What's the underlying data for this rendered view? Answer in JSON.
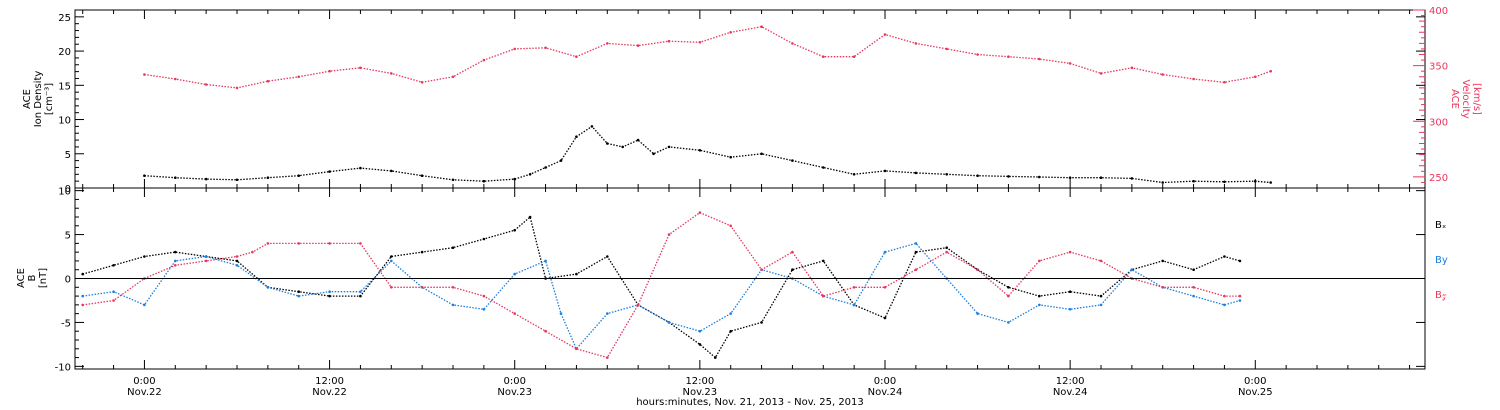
{
  "colors": {
    "black": "#000000",
    "pink": "#e8365d",
    "blue": "#1a7fe0"
  },
  "chart_data": [
    {
      "type": "scatter",
      "panel": "top",
      "ylabel_left": [
        "ACE",
        "Ion Density",
        "[cm⁻³]"
      ],
      "ylabel_right": [
        "ACE",
        "Velocity",
        "[km/s]"
      ],
      "ylim_left": [
        0,
        26
      ],
      "yticks_left": [
        0,
        5,
        10,
        15,
        20,
        25
      ],
      "ylim_right": [
        240,
        400
      ],
      "yticks_right": [
        250,
        300,
        350,
        400
      ],
      "series": [
        {
          "axis": "left",
          "color": "#000000",
          "x": [
            0,
            2,
            4,
            6,
            8,
            10,
            12,
            14,
            16,
            18,
            20,
            22,
            24,
            25,
            26,
            27,
            28,
            29,
            30,
            31,
            32,
            33,
            34,
            36,
            38,
            40,
            42,
            44,
            46,
            48,
            50,
            52,
            54,
            56,
            58,
            60,
            62,
            64,
            66,
            68,
            70,
            72,
            73
          ],
          "y": [
            1.8,
            1.5,
            1.3,
            1.2,
            1.5,
            1.8,
            2.4,
            2.9,
            2.5,
            1.8,
            1.2,
            1.0,
            1.3,
            2.0,
            3.0,
            4.0,
            7.5,
            9.0,
            6.5,
            6.0,
            7.0,
            5.0,
            6.0,
            5.5,
            4.5,
            5.0,
            4.0,
            3.0,
            2.0,
            2.5,
            2.2,
            2.0,
            1.8,
            1.7,
            1.6,
            1.5,
            1.5,
            1.4,
            0.8,
            1.0,
            0.9,
            1.0,
            0.8
          ]
        },
        {
          "axis": "right",
          "color": "#e8365d",
          "x": [
            0,
            2,
            4,
            6,
            8,
            10,
            12,
            14,
            16,
            18,
            20,
            22,
            24,
            26,
            28,
            30,
            32,
            34,
            36,
            38,
            40,
            42,
            44,
            46,
            48,
            50,
            52,
            54,
            56,
            58,
            60,
            62,
            64,
            66,
            68,
            70,
            72,
            73
          ],
          "y": [
            342,
            338,
            333,
            330,
            336,
            340,
            345,
            348,
            343,
            335,
            340,
            355,
            365,
            366,
            358,
            370,
            368,
            372,
            371,
            380,
            385,
            370,
            358,
            358,
            378,
            370,
            365,
            360,
            358,
            356,
            352,
            343,
            348,
            342,
            338,
            335,
            340,
            345
          ]
        }
      ]
    },
    {
      "type": "scatter",
      "panel": "bottom",
      "ylabel": [
        "ACE",
        "B",
        "[nT]"
      ],
      "ylim": [
        -10.3,
        10.3
      ],
      "yticks": [
        -10,
        -5,
        0,
        5,
        10
      ],
      "xlabel": "hours:minutes, Nov. 21, 2013 - Nov. 25, 2013",
      "xlim": [
        -4.5,
        83
      ],
      "xticks": [
        {
          "t": 0,
          "time": "0:00",
          "date": "Nov.22"
        },
        {
          "t": 12,
          "time": "12:00",
          "date": "Nov.22"
        },
        {
          "t": 24,
          "time": "0:00",
          "date": "Nov.23"
        },
        {
          "t": 36,
          "time": "12:00",
          "date": "Nov.23"
        },
        {
          "t": 48,
          "time": "0:00",
          "date": "Nov.24"
        },
        {
          "t": 60,
          "time": "12:00",
          "date": "Nov.24"
        },
        {
          "t": 72,
          "time": "0:00",
          "date": "Nov.25"
        }
      ],
      "series": [
        {
          "name": "Bₓ",
          "color": "#000000",
          "x": [
            -4,
            -2,
            0,
            2,
            4,
            6,
            8,
            10,
            12,
            14,
            16,
            18,
            20,
            22,
            24,
            25,
            26,
            28,
            30,
            32,
            34,
            36,
            37,
            38,
            40,
            42,
            44,
            46,
            48,
            50,
            52,
            54,
            56,
            58,
            60,
            62,
            64,
            66,
            68,
            70,
            71
          ],
          "y": [
            0.5,
            1.5,
            2.5,
            3.0,
            2.5,
            2.0,
            -1.0,
            -1.5,
            -2.0,
            -2.0,
            2.5,
            3.0,
            3.5,
            4.5,
            5.5,
            7.0,
            0.0,
            0.5,
            2.5,
            -3.0,
            -5.0,
            -7.5,
            -9.0,
            -6.0,
            -5.0,
            1.0,
            2.0,
            -3.0,
            -4.5,
            3.0,
            3.5,
            1.0,
            -1.0,
            -2.0,
            -1.5,
            -2.0,
            1.0,
            2.0,
            1.0,
            2.5,
            2.0
          ]
        },
        {
          "name": "By",
          "color": "#1a7fe0",
          "x": [
            -4,
            -2,
            0,
            2,
            4,
            6,
            8,
            10,
            12,
            14,
            16,
            18,
            20,
            22,
            24,
            26,
            27,
            28,
            30,
            32,
            34,
            36,
            38,
            40,
            42,
            44,
            46,
            48,
            50,
            52,
            54,
            56,
            58,
            60,
            62,
            64,
            66,
            68,
            70,
            71
          ],
          "y": [
            -2.0,
            -1.5,
            -3.0,
            2.0,
            2.5,
            1.5,
            -1.0,
            -2.0,
            -1.5,
            -1.5,
            2.0,
            -1.0,
            -3.0,
            -3.5,
            0.5,
            2.0,
            -4.0,
            -8.0,
            -4.0,
            -3.0,
            -5.0,
            -6.0,
            -4.0,
            1.0,
            0.0,
            -2.0,
            -3.0,
            3.0,
            4.0,
            0.0,
            -4.0,
            -5.0,
            -3.0,
            -3.5,
            -3.0,
            1.0,
            -1.0,
            -2.0,
            -3.0,
            -2.5
          ]
        },
        {
          "name": "B𝓏",
          "color": "#e8365d",
          "x": [
            -4,
            -2,
            0,
            2,
            4,
            6,
            7,
            8,
            10,
            12,
            14,
            16,
            18,
            20,
            22,
            24,
            26,
            28,
            30,
            32,
            34,
            36,
            38,
            40,
            42,
            44,
            46,
            48,
            50,
            52,
            54,
            56,
            58,
            60,
            62,
            64,
            66,
            68,
            70,
            71
          ],
          "y": [
            -3.0,
            -2.5,
            0.0,
            1.5,
            2.0,
            2.5,
            3.0,
            4.0,
            4.0,
            4.0,
            4.0,
            -1.0,
            -1.0,
            -1.0,
            -2.0,
            -4.0,
            -6.0,
            -8.0,
            -9.0,
            -3.0,
            5.0,
            7.5,
            6.0,
            1.0,
            3.0,
            -2.0,
            -1.0,
            -1.0,
            1.0,
            3.0,
            1.0,
            -2.0,
            2.0,
            3.0,
            2.0,
            0.0,
            -1.0,
            -1.0,
            -2.0,
            -2.0
          ]
        }
      ]
    }
  ]
}
